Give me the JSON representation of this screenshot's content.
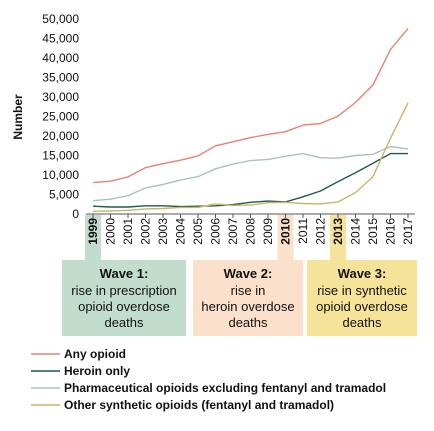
{
  "chart_data": {
    "type": "line",
    "title": "",
    "xlabel": "",
    "ylabel": "Number",
    "ylim": [
      0,
      50000
    ],
    "yticks": [
      "0",
      "5,000",
      "10,000",
      "15,000",
      "20,000",
      "25,000",
      "30,000",
      "35,000",
      "40,000",
      "45,000",
      "50,000"
    ],
    "ytick_values": [
      0,
      5000,
      10000,
      15000,
      20000,
      25000,
      30000,
      35000,
      40000,
      45000,
      50000
    ],
    "x": [
      "1999",
      "2000",
      "2001",
      "2002",
      "2003",
      "2004",
      "2005",
      "2006",
      "2007",
      "2008",
      "2009",
      "2010",
      "2011",
      "2012",
      "2013",
      "2014",
      "2015",
      "2016",
      "2017"
    ],
    "highlighted_years": [
      "1999",
      "2010",
      "2013"
    ],
    "grid": false,
    "legend_position": "bottom",
    "series": [
      {
        "name": "Any opioid",
        "color": "#e8826f",
        "values": [
          8050,
          8400,
          9500,
          11900,
          12900,
          13800,
          14900,
          17500,
          18500,
          19600,
          20400,
          21100,
          22800,
          23200,
          25100,
          28600,
          33100,
          42200,
          47600
        ]
      },
      {
        "name": "Heroin only",
        "color": "#1f5a4d",
        "values": [
          2000,
          1800,
          1800,
          2100,
          2100,
          1900,
          2000,
          2100,
          2400,
          3000,
          3300,
          3100,
          4400,
          5900,
          8300,
          10600,
          13000,
          15500,
          15500
        ]
      },
      {
        "name": "Pharmaceutical opioids excluding fentanyl and tramadol",
        "color": "#a8c4ba",
        "values": [
          3400,
          3800,
          4700,
          6700,
          7600,
          8700,
          9600,
          11600,
          12800,
          13700,
          14000,
          14800,
          15500,
          14400,
          14300,
          15000,
          15300,
          17300,
          16700
        ]
      },
      {
        "name": "Other synthetic opioids (fentanyl and tramadol)",
        "color": "#c7b56a",
        "values": [
          700,
          800,
          950,
          1300,
          1400,
          1700,
          1700,
          2600,
          2200,
          2300,
          2900,
          3000,
          2700,
          2600,
          3100,
          5500,
          9600,
          19400,
          28500
        ]
      }
    ]
  },
  "waves": [
    {
      "title": "Wave 1:",
      "lines": [
        "rise in prescription",
        "opioid overdose",
        "deaths"
      ],
      "color": "#c2dccd"
    },
    {
      "title": "Wave 2:",
      "lines": [
        "rise in",
        "heroin overdose",
        "deaths"
      ],
      "color": "#fbe1cb"
    },
    {
      "title": "Wave 3:",
      "lines": [
        "rise in synthetic",
        "opioid overdose",
        "deaths"
      ],
      "color": "#f6e39a"
    }
  ]
}
